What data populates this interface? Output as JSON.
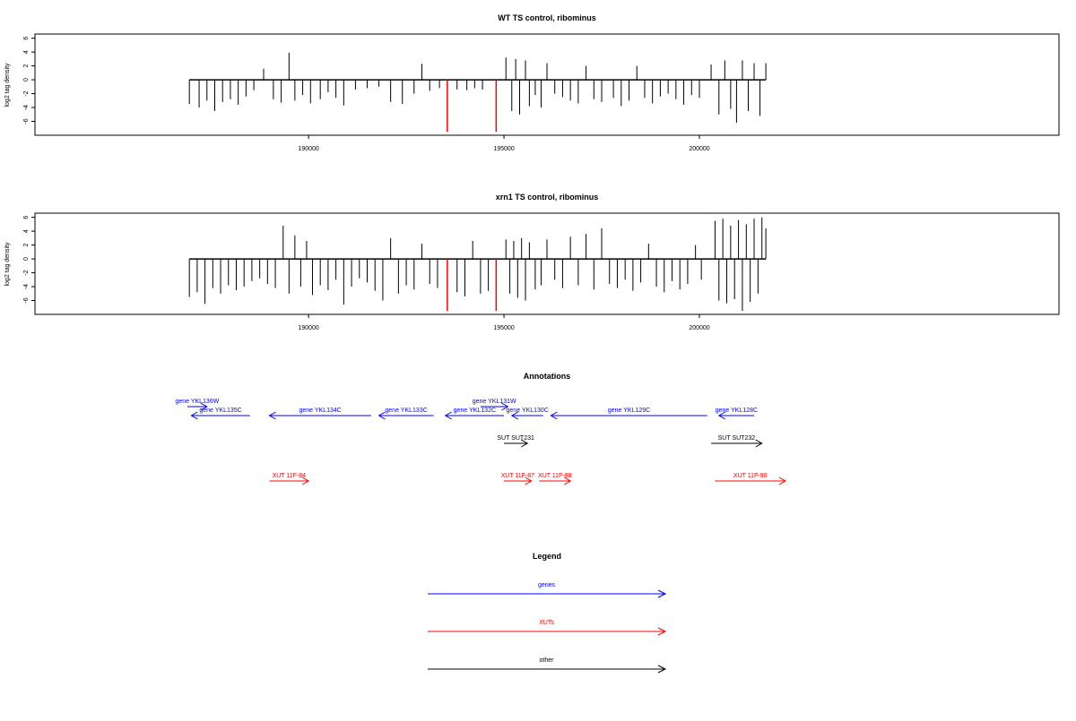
{
  "colors": {
    "genes": "#0000ff",
    "xuts": "#ff0000",
    "other": "#000000",
    "density": "#000000",
    "highlight": "#ff0000"
  },
  "chart_data": [
    {
      "type": "bar",
      "title": "WT TS control, ribominus",
      "ylabel": "log2 tag density",
      "xlim": [
        183000,
        209200
      ],
      "ylim": [
        -8,
        6.6
      ],
      "yticks": [
        6,
        4,
        2,
        0,
        -2,
        -4,
        -6
      ],
      "xticks": [
        190000,
        195000,
        200000
      ],
      "tick_labels": [
        "190000",
        "195000",
        "200000"
      ],
      "series": [
        {
          "x": [
            186950,
            187200,
            187400,
            187600,
            187800,
            188000,
            188200,
            188400,
            188600,
            188850,
            189100,
            189300,
            189500,
            189650,
            189850,
            190050,
            190300,
            190500,
            190700,
            190900,
            191200,
            191500,
            191800,
            192100,
            192400,
            192700,
            192900,
            193100,
            193350,
            193800,
            194050,
            194250,
            194450,
            195050,
            195200,
            195300,
            195400,
            195550,
            195650,
            195800,
            195950,
            196100,
            196300,
            196500,
            196700,
            196900,
            197100,
            197300,
            197500,
            197800,
            198000,
            198200,
            198400,
            198600,
            198800,
            199000,
            199200,
            199400,
            199600,
            199800,
            200000,
            200300,
            200500,
            200650,
            200800,
            200950,
            201100,
            201250,
            201400,
            201550,
            201700
          ],
          "values": [
            -3.5,
            -4.0,
            -3.0,
            -4.5,
            -3.2,
            -2.8,
            -3.6,
            -2.4,
            -1.5,
            1.6,
            -2.8,
            -3.3,
            3.9,
            -3.0,
            -2.2,
            -3.4,
            -2.8,
            -1.8,
            -2.6,
            -3.7,
            -1.4,
            -1.2,
            -1.0,
            -3.2,
            -3.5,
            -2.0,
            2.3,
            -1.6,
            -1.2,
            -1.4,
            -1.5,
            -1.2,
            -1.4,
            3.2,
            -4.5,
            3.0,
            -5.0,
            2.8,
            -3.8,
            -2.2,
            -4.0,
            2.4,
            -2.0,
            -2.5,
            -3.0,
            -3.4,
            2.0,
            -2.8,
            -3.2,
            -2.6,
            -3.8,
            -3.0,
            2.0,
            -2.6,
            -3.4,
            -2.4,
            -2.0,
            -2.8,
            -3.6,
            -2.2,
            -2.6,
            2.2,
            -5.0,
            2.8,
            -4.2,
            -6.2,
            2.8,
            -4.5,
            2.4,
            -5.2,
            2.4
          ],
          "highlights": [
            {
              "x": 193550,
              "value": -7.5
            },
            {
              "x": 194800,
              "value": -7.5
            }
          ]
        }
      ]
    },
    {
      "type": "bar",
      "title": "xrn1 TS control, ribominus",
      "ylabel": "log2 tag density",
      "xlim": [
        183000,
        209200
      ],
      "ylim": [
        -8,
        6.6
      ],
      "yticks": [
        6,
        4,
        2,
        0,
        -2,
        -4,
        -6
      ],
      "xticks": [
        190000,
        195000,
        200000
      ],
      "tick_labels": [
        "190000",
        "195000",
        "200000"
      ],
      "series": [
        {
          "x": [
            186950,
            187150,
            187350,
            187550,
            187750,
            187950,
            188150,
            188350,
            188550,
            188750,
            188950,
            189150,
            189350,
            189500,
            189650,
            189800,
            189950,
            190100,
            190300,
            190500,
            190700,
            190900,
            191100,
            191300,
            191500,
            191700,
            191900,
            192100,
            192300,
            192500,
            192700,
            192900,
            193100,
            193300,
            193800,
            194000,
            194200,
            194400,
            194600,
            195050,
            195150,
            195250,
            195350,
            195450,
            195550,
            195650,
            195800,
            195950,
            196100,
            196300,
            196500,
            196700,
            196900,
            197100,
            197300,
            197500,
            197700,
            197900,
            198100,
            198300,
            198500,
            198700,
            198900,
            199100,
            199300,
            199500,
            199700,
            199900,
            200050,
            200400,
            200500,
            200600,
            200700,
            200800,
            200900,
            201000,
            201100,
            201200,
            201300,
            201400,
            201500,
            201600,
            201700
          ],
          "values": [
            -5.5,
            -4.8,
            -6.5,
            -4.2,
            -5.0,
            -3.8,
            -4.5,
            -4.0,
            -3.2,
            -2.8,
            -3.6,
            -4.2,
            4.8,
            -5.0,
            3.4,
            -4.0,
            2.6,
            -5.2,
            -3.8,
            -4.5,
            -3.0,
            -6.6,
            -4.0,
            -2.8,
            -3.4,
            -4.6,
            -6.0,
            3.0,
            -5.0,
            -3.8,
            -4.4,
            2.2,
            -3.6,
            -4.2,
            -4.8,
            -5.4,
            2.6,
            -5.0,
            -4.6,
            2.8,
            -5.0,
            2.6,
            -5.6,
            3.0,
            -6.0,
            2.4,
            -4.4,
            -3.8,
            2.8,
            -3.0,
            -4.2,
            3.2,
            -3.8,
            3.6,
            -4.4,
            4.4,
            -3.6,
            -4.2,
            -3.0,
            -4.6,
            -3.4,
            2.2,
            -4.0,
            -4.8,
            -3.2,
            -4.4,
            -3.6,
            2.0,
            -3.0,
            5.5,
            -6.0,
            5.8,
            -6.4,
            4.8,
            -5.8,
            5.6,
            -7.5,
            5.0,
            -6.2,
            5.8,
            -5.0,
            6.0,
            4.4
          ],
          "highlights": [
            {
              "x": 193550,
              "value": -7.5
            },
            {
              "x": 194800,
              "value": -7.5
            }
          ]
        }
      ]
    }
  ],
  "annotations": {
    "title": "Annotations",
    "features": [
      {
        "label": "gene YKL136W",
        "kind": "genes",
        "strand": "+",
        "start": 186900,
        "end": 187400,
        "row": 0
      },
      {
        "label": "gene YKL135C",
        "kind": "genes",
        "strand": "-",
        "start": 187000,
        "end": 188500,
        "row": 1
      },
      {
        "label": "gene YKL134C",
        "kind": "genes",
        "strand": "-",
        "start": 189000,
        "end": 191600,
        "row": 1
      },
      {
        "label": "gene YKL133C",
        "kind": "genes",
        "strand": "-",
        "start": 191800,
        "end": 193200,
        "row": 1
      },
      {
        "label": "gene YKL131W",
        "kind": "genes",
        "strand": "+",
        "start": 194400,
        "end": 195100,
        "row": 0
      },
      {
        "label": "gene YKL132C",
        "kind": "genes",
        "strand": "-",
        "start": 193500,
        "end": 195000,
        "row": 1
      },
      {
        "label": "gene YKL130C",
        "kind": "genes",
        "strand": "-",
        "start": 195200,
        "end": 196000,
        "row": 1
      },
      {
        "label": "gene YKL129C",
        "kind": "genes",
        "strand": "-",
        "start": 196200,
        "end": 200200,
        "row": 1
      },
      {
        "label": "gene YKL128C",
        "kind": "genes",
        "strand": "-",
        "start": 200500,
        "end": 201400,
        "row": 1
      },
      {
        "label": "SUT SUT231",
        "kind": "other",
        "strand": "+",
        "start": 195000,
        "end": 195600,
        "row": 2
      },
      {
        "label": "SUT SUT232",
        "kind": "other",
        "strand": "+",
        "start": 200300,
        "end": 201600,
        "row": 2
      },
      {
        "label": "XUT 11F-84",
        "kind": "xuts",
        "strand": "+",
        "start": 189000,
        "end": 190000,
        "row": 3
      },
      {
        "label": "XUT 11F-87",
        "kind": "xuts",
        "strand": "+",
        "start": 195000,
        "end": 195700,
        "row": 3
      },
      {
        "label": "XUT 11F-88",
        "kind": "xuts",
        "strand": "+",
        "start": 195900,
        "end": 196700,
        "row": 3
      },
      {
        "label": "XUT 11F-90",
        "kind": "xuts",
        "strand": "+",
        "start": 200400,
        "end": 202200,
        "row": 3
      }
    ]
  },
  "legend": {
    "title": "Legend",
    "items": [
      {
        "label": "genes",
        "kind": "genes"
      },
      {
        "label": "XUTs",
        "kind": "xuts"
      },
      {
        "label": "other",
        "kind": "other"
      }
    ]
  }
}
